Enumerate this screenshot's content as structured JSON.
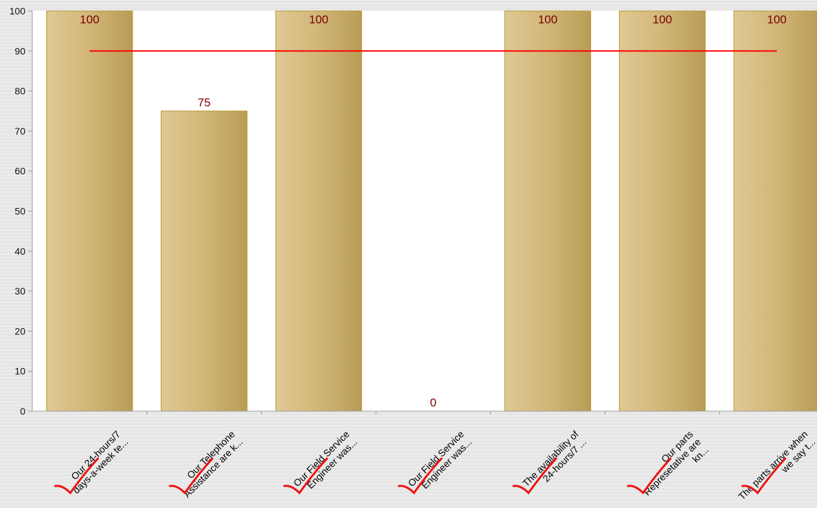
{
  "chart_data": {
    "type": "bar",
    "categories": [
      [
        "Our 24-hours/7",
        "days-a-week te..."
      ],
      [
        "Our Telephone",
        "Assistance are k..."
      ],
      [
        "Our Field Service",
        "Engineer was..."
      ],
      [
        "Our Field Service",
        "Engineer was..."
      ],
      [
        "The availability of",
        "24-hours/7 ..."
      ],
      [
        "Our parts",
        "Represetative are",
        "kn..."
      ],
      [
        "The parts arrive when",
        "we say t..."
      ]
    ],
    "values": [
      100,
      75,
      100,
      0,
      100,
      100,
      100
    ],
    "data_labels": [
      "100",
      "75",
      "100",
      "0",
      "100",
      "100",
      "100"
    ],
    "target_line": 90,
    "ylim": [
      0,
      100
    ],
    "yticks": [
      "0",
      "10",
      "20",
      "30",
      "40",
      "50",
      "60",
      "70",
      "80",
      "90",
      "100"
    ],
    "grid": false,
    "colors": {
      "bar_light": "#dfc994",
      "bar_dark": "#b89c56",
      "bar_border": "#b8962e",
      "target": "#ff0000",
      "label": "#7a0000",
      "check": "#ee1111"
    },
    "annotations": "red hand-drawn check marks under each category label"
  }
}
